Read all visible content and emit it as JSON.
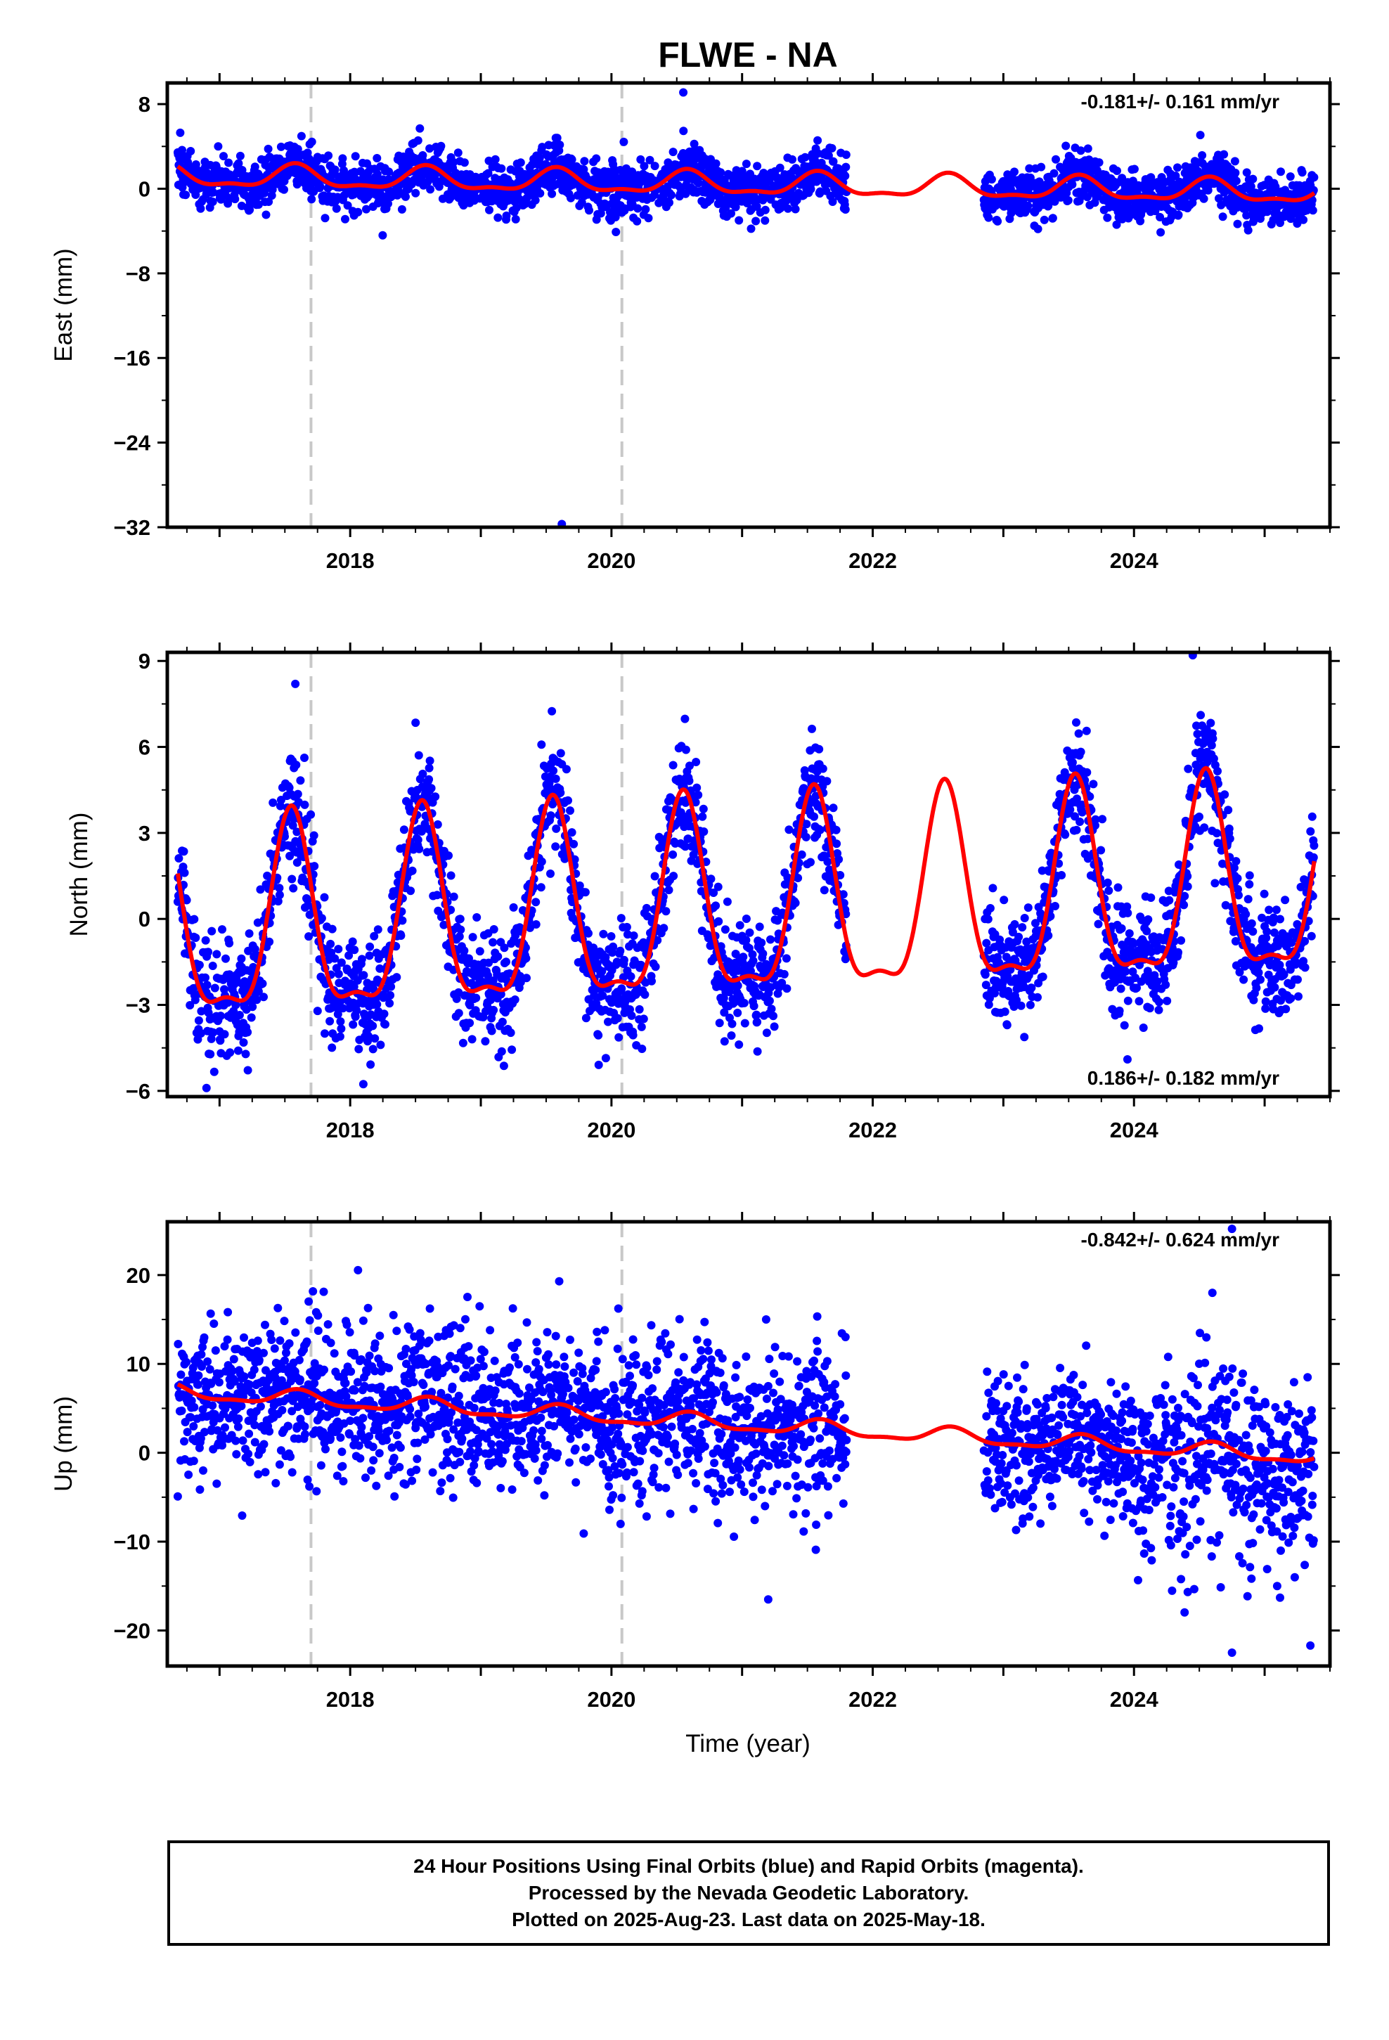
{
  "title": "FLWE - NA",
  "colors": {
    "final_orbits": "#0000ff",
    "model": "#ff0000",
    "steps": "#c8c8c8",
    "frame": "#000000"
  },
  "chart_data": [
    {
      "type": "scatter",
      "component": "east",
      "ylabel": "East (mm)",
      "ylim": [
        -32,
        10
      ],
      "yticks": [
        8,
        0,
        -8,
        -16,
        -24,
        -32
      ],
      "yticklabels": [
        "8",
        "0",
        "−8",
        "−16",
        "−24",
        "−32"
      ],
      "xlim": [
        2016.6,
        2025.5
      ],
      "xticks": [
        2018,
        2020,
        2022,
        2024
      ],
      "xticklabels": [
        "2018",
        "2020",
        "2022",
        "2024"
      ],
      "rate_text": "-0.181+/- 0.161 mm/yr",
      "rate_position": "top-right",
      "trend": {
        "offset": 0.4,
        "rate": -0.181,
        "annual_amp": 1.0,
        "semiannual_amp": 0.4,
        "peak": 0.58
      },
      "scatter_sigma": 1.2,
      "step_epochs": [
        2017.7,
        2020.08
      ],
      "outliers": [
        {
          "x": 2019.62,
          "y": -31.7
        },
        {
          "x": 2020.55,
          "y": 9.1
        }
      ],
      "gaps": [
        [
          2021.8,
          2022.85
        ]
      ],
      "grid": false
    },
    {
      "type": "scatter",
      "component": "north",
      "ylabel": "North (mm)",
      "ylim": [
        -6.2,
        9.3
      ],
      "yticks": [
        9,
        6,
        3,
        0,
        -3,
        -6
      ],
      "yticklabels": [
        "9",
        "6",
        "3",
        "0",
        "−3",
        "−6"
      ],
      "xlim": [
        2016.6,
        2025.5
      ],
      "xticks": [
        2018,
        2020,
        2022,
        2024
      ],
      "xticklabels": [
        "2018",
        "2020",
        "2022",
        "2024"
      ],
      "rate_text": "0.186+/- 0.182 mm/yr",
      "rate_position": "bottom-right",
      "trend": {
        "offset": 0.2,
        "rate": 0.186,
        "annual_amp": 3.3,
        "semiannual_amp": 1.1,
        "peak": 0.55
      },
      "scatter_sigma": 1.0,
      "step_epochs": [
        2017.7,
        2020.08
      ],
      "outliers": [
        {
          "x": 2024.45,
          "y": 9.2
        },
        {
          "x": 2017.58,
          "y": 8.2
        },
        {
          "x": 2016.9,
          "y": -5.9
        },
        {
          "x": 2023.95,
          "y": -4.9
        }
      ],
      "gaps": [
        [
          2021.8,
          2022.85
        ]
      ],
      "grid": false
    },
    {
      "type": "scatter",
      "component": "up",
      "ylabel": "Up (mm)",
      "xlabel": "Time (year)",
      "ylim": [
        -24,
        26
      ],
      "yticks": [
        20,
        10,
        0,
        -10,
        -20
      ],
      "yticklabels": [
        "20",
        "10",
        "0",
        "−10",
        "−20"
      ],
      "xlim": [
        2016.6,
        2025.5
      ],
      "xticks": [
        2018,
        2020,
        2022,
        2024
      ],
      "xticklabels": [
        "2018",
        "2020",
        "2022",
        "2024"
      ],
      "rate_text": "-0.842+/- 0.624 mm/yr",
      "rate_position": "top-right",
      "trend": {
        "offset": 3.2,
        "rate": -0.842,
        "annual_amp": 0.8,
        "semiannual_amp": 0.3,
        "peak": 0.6
      },
      "scatter_sigma": 4.2,
      "step_epochs": [
        2017.7,
        2020.08
      ],
      "outliers": [
        {
          "x": 2024.75,
          "y": 25.2
        },
        {
          "x": 2019.6,
          "y": 19.3
        },
        {
          "x": 2024.6,
          "y": 18.0
        },
        {
          "x": 2024.75,
          "y": -22.5
        },
        {
          "x": 2025.35,
          "y": -21.7
        },
        {
          "x": 2021.2,
          "y": -16.5
        }
      ],
      "gaps": [
        [
          2021.8,
          2022.85
        ]
      ],
      "grid": false
    }
  ],
  "footer": {
    "line1": "24 Hour Positions Using Final Orbits (blue) and Rapid Orbits (magenta).",
    "line2": "Processed by the Nevada Geodetic Laboratory.",
    "line3": "Plotted on 2025-Aug-23. Last data on 2025-May-18."
  }
}
